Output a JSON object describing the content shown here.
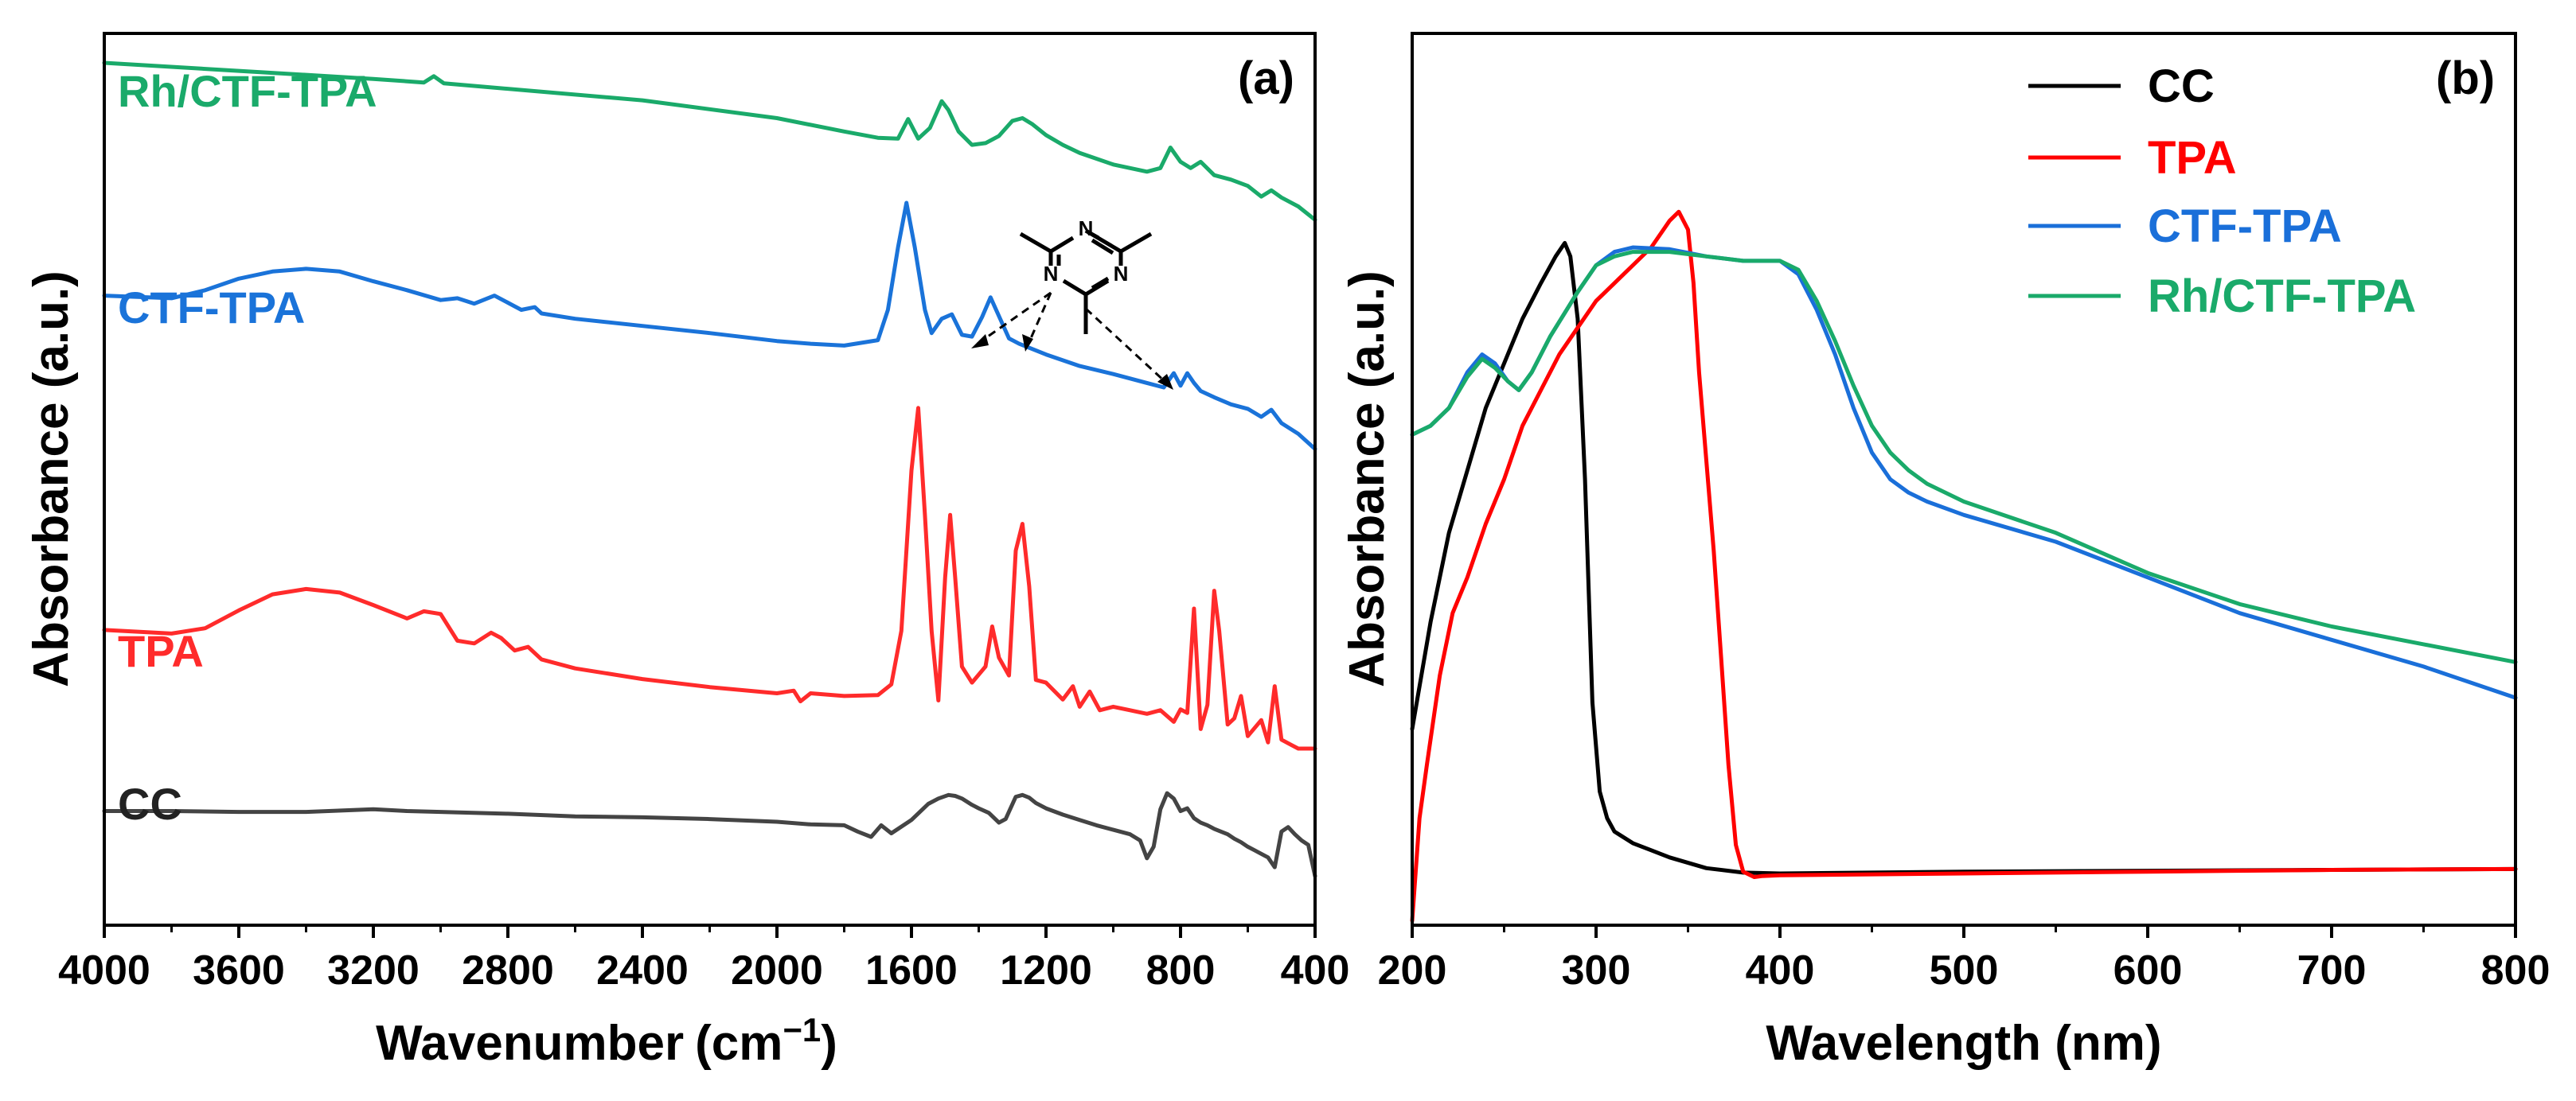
{
  "chart_data": [
    {
      "type": "line",
      "panel_label": "(a)",
      "xlabel": "Wavenumber",
      "xunit": "(cm",
      "xunit_sup": "−1",
      "xunit_end": ")",
      "ylabel": "Absorbance (a.u.)",
      "xlim": [
        4000,
        400
      ],
      "x_reversed": true,
      "ylim": [
        0,
        10
      ],
      "xticks": [
        4000,
        3600,
        3200,
        2800,
        2400,
        2000,
        1600,
        1200,
        800,
        400
      ],
      "xtick_labels": [
        "4000",
        "3600",
        "3200",
        "2800",
        "2400",
        "2000",
        "1600",
        "1200",
        "800",
        "400"
      ],
      "inset": "triazine ring structure (C3N3 with three substituents) with dashed arrows pointing to CTF-TPA peaks at ~1510, ~1360 and ~800 cm-1",
      "inset_atoms": [
        "N",
        "N",
        "N"
      ],
      "series": [
        {
          "name": "Rh/CTF-TPA",
          "color": "#1aaa6a",
          "x": [
            4000,
            3600,
            3200,
            3050,
            3020,
            2990,
            2400,
            2000,
            1800,
            1700,
            1640,
            1610,
            1580,
            1545,
            1510,
            1490,
            1460,
            1420,
            1380,
            1340,
            1300,
            1270,
            1240,
            1200,
            1150,
            1100,
            1000,
            900,
            860,
            830,
            800,
            770,
            740,
            700,
            650,
            600,
            560,
            530,
            500,
            450,
            400
          ],
          "y": [
            9.67,
            9.58,
            9.49,
            9.45,
            9.52,
            9.44,
            9.25,
            9.05,
            8.9,
            8.83,
            8.82,
            9.04,
            8.82,
            8.94,
            9.24,
            9.14,
            8.9,
            8.75,
            8.77,
            8.85,
            9.02,
            9.05,
            8.98,
            8.86,
            8.75,
            8.66,
            8.53,
            8.45,
            8.49,
            8.72,
            8.56,
            8.49,
            8.56,
            8.41,
            8.36,
            8.29,
            8.17,
            8.24,
            8.16,
            8.06,
            7.91
          ]
        },
        {
          "name": "CTF-TPA",
          "color": "#1a73d9",
          "x": [
            4000,
            3800,
            3700,
            3600,
            3500,
            3400,
            3300,
            3200,
            3100,
            3000,
            2950,
            2900,
            2840,
            2800,
            2760,
            2720,
            2700,
            2600,
            2400,
            2200,
            2000,
            1900,
            1800,
            1700,
            1670,
            1640,
            1615,
            1590,
            1560,
            1540,
            1510,
            1480,
            1450,
            1420,
            1390,
            1365,
            1340,
            1310,
            1280,
            1200,
            1100,
            1000,
            900,
            850,
            820,
            800,
            780,
            760,
            740,
            700,
            650,
            600,
            560,
            530,
            500,
            450,
            400
          ],
          "y": [
            7.06,
            7.03,
            7.12,
            7.25,
            7.33,
            7.36,
            7.33,
            7.22,
            7.12,
            7.01,
            7.03,
            6.97,
            7.06,
            6.98,
            6.9,
            6.93,
            6.86,
            6.8,
            6.72,
            6.64,
            6.55,
            6.52,
            6.5,
            6.56,
            6.9,
            7.6,
            8.1,
            7.6,
            6.9,
            6.64,
            6.8,
            6.85,
            6.62,
            6.6,
            6.82,
            7.04,
            6.83,
            6.58,
            6.52,
            6.4,
            6.27,
            6.18,
            6.08,
            6.03,
            6.19,
            6.05,
            6.19,
            6.08,
            5.99,
            5.92,
            5.84,
            5.79,
            5.7,
            5.78,
            5.63,
            5.51,
            5.34
          ]
        },
        {
          "name": "TPA",
          "color": "#ff2b2b",
          "x": [
            4000,
            3800,
            3700,
            3600,
            3500,
            3400,
            3300,
            3200,
            3100,
            3050,
            3000,
            2950,
            2900,
            2850,
            2820,
            2780,
            2740,
            2700,
            2600,
            2400,
            2200,
            2000,
            1950,
            1930,
            1900,
            1800,
            1700,
            1660,
            1630,
            1600,
            1580,
            1560,
            1540,
            1520,
            1500,
            1485,
            1470,
            1450,
            1420,
            1380,
            1360,
            1340,
            1310,
            1290,
            1270,
            1250,
            1230,
            1200,
            1150,
            1120,
            1100,
            1070,
            1040,
            1000,
            950,
            900,
            860,
            820,
            800,
            780,
            760,
            740,
            720,
            700,
            685,
            660,
            640,
            620,
            600,
            560,
            540,
            520,
            500,
            470,
            450,
            400
          ],
          "y": [
            3.31,
            3.27,
            3.33,
            3.53,
            3.71,
            3.77,
            3.73,
            3.59,
            3.44,
            3.52,
            3.49,
            3.19,
            3.16,
            3.28,
            3.22,
            3.08,
            3.12,
            2.98,
            2.88,
            2.76,
            2.67,
            2.6,
            2.63,
            2.51,
            2.6,
            2.57,
            2.58,
            2.7,
            3.3,
            5.1,
            5.8,
            4.6,
            3.3,
            2.52,
            3.9,
            4.6,
            3.9,
            2.9,
            2.72,
            2.9,
            3.35,
            3.0,
            2.8,
            4.2,
            4.5,
            3.8,
            2.75,
            2.72,
            2.53,
            2.68,
            2.45,
            2.62,
            2.41,
            2.45,
            2.41,
            2.37,
            2.41,
            2.28,
            2.42,
            2.38,
            3.55,
            2.2,
            2.47,
            3.75,
            3.3,
            2.25,
            2.32,
            2.57,
            2.12,
            2.3,
            2.05,
            2.68,
            2.08,
            2.02,
            1.98,
            1.98
          ]
        },
        {
          "name": "CC",
          "color": "#444444",
          "x": [
            4000,
            3800,
            3600,
            3400,
            3200,
            3100,
            3000,
            2800,
            2600,
            2400,
            2200,
            2000,
            1900,
            1800,
            1760,
            1720,
            1690,
            1660,
            1600,
            1550,
            1520,
            1490,
            1470,
            1450,
            1420,
            1400,
            1370,
            1340,
            1320,
            1290,
            1270,
            1250,
            1230,
            1200,
            1150,
            1100,
            1050,
            1000,
            950,
            920,
            900,
            880,
            860,
            840,
            820,
            800,
            780,
            760,
            740,
            720,
            700,
            680,
            660,
            640,
            620,
            600,
            580,
            560,
            540,
            520,
            500,
            480,
            460,
            440,
            420,
            400
          ],
          "y": [
            1.28,
            1.28,
            1.27,
            1.27,
            1.3,
            1.28,
            1.27,
            1.25,
            1.22,
            1.21,
            1.19,
            1.16,
            1.13,
            1.12,
            1.05,
            0.99,
            1.12,
            1.03,
            1.18,
            1.36,
            1.42,
            1.46,
            1.45,
            1.42,
            1.35,
            1.31,
            1.26,
            1.15,
            1.19,
            1.44,
            1.46,
            1.43,
            1.37,
            1.31,
            1.24,
            1.18,
            1.12,
            1.07,
            1.02,
            0.95,
            0.75,
            0.88,
            1.3,
            1.48,
            1.42,
            1.28,
            1.31,
            1.2,
            1.15,
            1.12,
            1.08,
            1.05,
            1.02,
            0.97,
            0.93,
            0.88,
            0.84,
            0.8,
            0.76,
            0.65,
            1.05,
            1.1,
            1.02,
            0.95,
            0.9,
            0.55
          ]
        }
      ],
      "legend_style": "inline labels above each curve"
    },
    {
      "type": "line",
      "panel_label": "(b)",
      "xlabel": "Wavelength (nm)",
      "ylabel": "Absorbance (a.u.)",
      "xlim": [
        200,
        800
      ],
      "ylim": [
        0,
        100
      ],
      "xticks": [
        200,
        300,
        400,
        500,
        600,
        700,
        800
      ],
      "xtick_labels": [
        "200",
        "300",
        "400",
        "500",
        "600",
        "700",
        "800"
      ],
      "legend_position": "top-right",
      "series": [
        {
          "name": "CC",
          "color": "#000000",
          "x": [
            200,
            210,
            220,
            230,
            240,
            250,
            260,
            270,
            278,
            283,
            286,
            290,
            294,
            298,
            302,
            306,
            310,
            320,
            330,
            340,
            360,
            380,
            400,
            450,
            500,
            600,
            700,
            800
          ],
          "y": [
            22,
            34,
            44,
            51,
            58,
            63,
            68,
            72,
            75,
            76.5,
            75,
            68,
            50,
            25,
            15,
            12,
            10.5,
            9.2,
            8.4,
            7.6,
            6.4,
            5.9,
            5.8,
            5.9,
            6.0,
            6.1,
            6.2,
            6.3
          ]
        },
        {
          "name": "TPA",
          "color": "#ff0000",
          "x": [
            200,
            204,
            208,
            215,
            222,
            230,
            240,
            250,
            260,
            270,
            280,
            290,
            300,
            310,
            320,
            330,
            340,
            345,
            350,
            353,
            356,
            360,
            364,
            368,
            372,
            376,
            380,
            386,
            390,
            400,
            500,
            600,
            700,
            800
          ],
          "y": [
            0.5,
            12,
            18,
            28,
            35,
            39,
            45,
            50,
            56,
            60,
            64,
            67,
            70,
            72,
            74,
            76,
            79,
            80,
            78,
            72,
            62,
            52,
            42,
            30,
            18,
            9,
            6,
            5.4,
            5.5,
            5.6,
            5.8,
            6.0,
            6.2,
            6.3
          ]
        },
        {
          "name": "CTF-TPA",
          "color": "#1a6fd9",
          "x": [
            200,
            210,
            220,
            230,
            238,
            245,
            252,
            258,
            265,
            275,
            290,
            300,
            310,
            320,
            340,
            360,
            380,
            400,
            410,
            420,
            430,
            440,
            450,
            460,
            470,
            480,
            500,
            550,
            600,
            650,
            700,
            750,
            800
          ],
          "y": [
            55,
            56,
            58,
            62,
            64,
            63,
            61,
            60,
            62,
            66,
            71,
            74,
            75.5,
            76,
            75.8,
            75,
            74.5,
            74.5,
            73,
            69,
            64,
            58,
            53,
            50,
            48.5,
            47.5,
            46,
            43,
            39,
            35,
            32,
            29,
            25.5
          ]
        },
        {
          "name": "Rh/CTF-TPA",
          "color": "#1aaa6a",
          "x": [
            200,
            210,
            220,
            230,
            238,
            245,
            252,
            258,
            265,
            275,
            290,
            300,
            310,
            320,
            340,
            360,
            380,
            400,
            410,
            420,
            430,
            440,
            450,
            460,
            470,
            480,
            500,
            550,
            600,
            650,
            700,
            750,
            800
          ],
          "y": [
            55,
            56,
            58,
            61.5,
            63.5,
            62.5,
            61,
            60,
            62,
            66,
            71,
            74,
            75,
            75.5,
            75.5,
            75,
            74.5,
            74.5,
            73.5,
            70,
            65.5,
            60.5,
            56,
            53,
            51,
            49.5,
            47.5,
            44,
            39.5,
            36,
            33.5,
            31.5,
            29.5
          ]
        }
      ]
    }
  ]
}
